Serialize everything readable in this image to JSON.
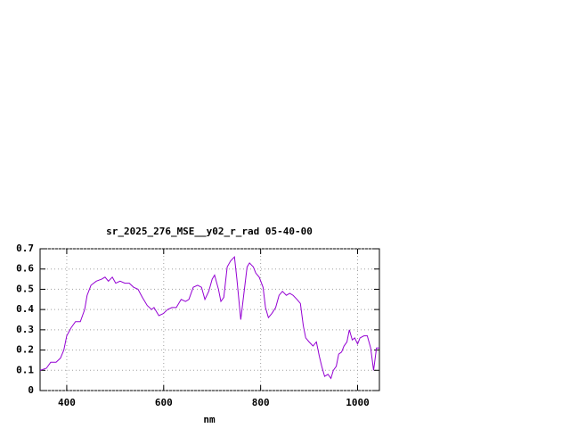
{
  "chart_data": {
    "type": "line",
    "title": "sr_2025_276_MSE__y02_r_rad 05-40-00",
    "x_label": "nm",
    "grid": true,
    "xlim": [
      345,
      1045
    ],
    "xticks": [
      400,
      600,
      800,
      1000
    ],
    "ylim": [
      0,
      0.7
    ],
    "yticks": [
      0,
      0.1,
      0.2,
      0.3,
      0.4,
      0.5,
      0.6,
      0.7
    ],
    "series": [
      {
        "color": "#9400d3",
        "x": [
          345,
          358,
          367,
          378,
          387,
          394,
          400,
          409,
          418,
          428,
          437,
          442,
          450,
          461,
          472,
          479,
          486,
          494,
          501,
          510,
          520,
          529,
          538,
          547,
          556,
          566,
          575,
          580,
          590,
          599,
          608,
          617,
          626,
          636,
          645,
          652,
          661,
          670,
          678,
          685,
          693,
          700,
          705,
          713,
          718,
          724,
          731,
          738,
          746,
          751,
          759,
          764,
          772,
          777,
          785,
          790,
          797,
          805,
          810,
          816,
          823,
          831,
          838,
          845,
          853,
          860,
          867,
          875,
          882,
          888,
          893,
          900,
          908,
          915,
          921,
          926,
          932,
          939,
          945,
          950,
          956,
          961,
          967,
          972,
          978,
          983,
          989,
          994,
          1000,
          1005,
          1013,
          1020,
          1027,
          1033,
          1039,
          1045
        ],
        "values": [
          0.1,
          0.11,
          0.14,
          0.14,
          0.16,
          0.2,
          0.27,
          0.31,
          0.34,
          0.34,
          0.4,
          0.47,
          0.52,
          0.54,
          0.55,
          0.56,
          0.54,
          0.56,
          0.53,
          0.54,
          0.53,
          0.53,
          0.51,
          0.5,
          0.46,
          0.42,
          0.4,
          0.41,
          0.37,
          0.38,
          0.4,
          0.41,
          0.41,
          0.45,
          0.44,
          0.45,
          0.51,
          0.52,
          0.51,
          0.45,
          0.49,
          0.55,
          0.57,
          0.5,
          0.44,
          0.46,
          0.61,
          0.64,
          0.66,
          0.55,
          0.35,
          0.45,
          0.61,
          0.63,
          0.61,
          0.58,
          0.56,
          0.51,
          0.41,
          0.36,
          0.38,
          0.41,
          0.47,
          0.49,
          0.47,
          0.48,
          0.47,
          0.45,
          0.43,
          0.32,
          0.26,
          0.24,
          0.22,
          0.24,
          0.17,
          0.12,
          0.07,
          0.08,
          0.06,
          0.1,
          0.12,
          0.18,
          0.19,
          0.22,
          0.24,
          0.3,
          0.25,
          0.26,
          0.23,
          0.26,
          0.27,
          0.27,
          0.21,
          0.1,
          0.21,
          0.21
        ]
      }
    ]
  }
}
